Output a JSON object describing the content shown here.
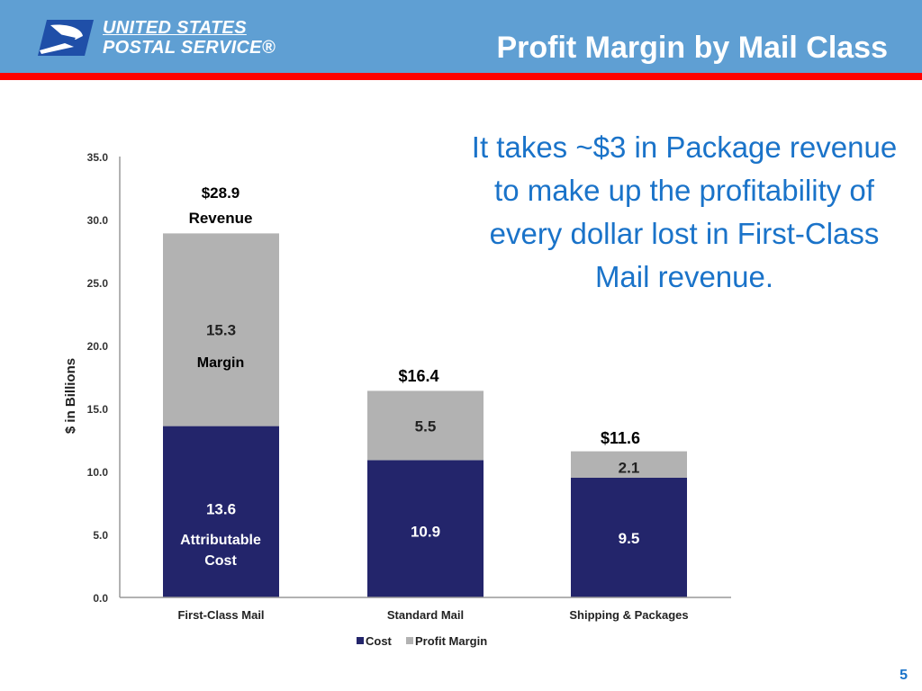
{
  "header": {
    "logo_line1": "UNITED STATES",
    "logo_line2": "POSTAL SERVICE®",
    "title": "Profit Margin by Mail Class"
  },
  "callout": "It takes ~$3 in Package revenue to make up the profitability of every dollar lost in First-Class Mail revenue.",
  "page_number": "5",
  "colors": {
    "header": "#5f9fd3",
    "accent_bar": "#ff0000",
    "cost": "#23256b",
    "margin": "#b2b2b2",
    "callout": "#1a73c9"
  },
  "chart_data": {
    "type": "bar",
    "stacked": true,
    "ylabel": "$ in Billions",
    "ylim": [
      0,
      35
    ],
    "yticks": [
      "0.0",
      "5.0",
      "10.0",
      "15.0",
      "20.0",
      "25.0",
      "30.0",
      "35.0"
    ],
    "categories": [
      "First-Class Mail",
      "Standard Mail",
      "Shipping & Packages"
    ],
    "series": [
      {
        "name": "Cost",
        "values": [
          13.6,
          10.9,
          9.5
        ],
        "labels": [
          "13.6",
          "10.9",
          "9.5"
        ]
      },
      {
        "name": "Profit Margin",
        "values": [
          15.3,
          5.5,
          2.1
        ],
        "labels": [
          "15.3",
          "5.5",
          "2.1"
        ]
      }
    ],
    "totals": [
      "$28.9",
      "$16.4",
      "$11.6"
    ],
    "annotations": {
      "revenue": "Revenue",
      "margin": "Margin",
      "cost_line1": "Attributable",
      "cost_line2": "Cost"
    },
    "legend": "bottom",
    "grid": false
  }
}
